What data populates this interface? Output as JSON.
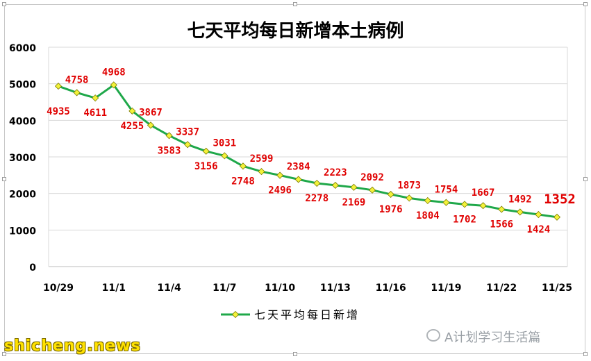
{
  "chart_data": {
    "type": "line",
    "title": "七天平均每日新增本土病例",
    "legend": {
      "label": "七天平均每日新增",
      "placement": "bottom"
    },
    "x_tick_labels": [
      "10/29",
      "11/1",
      "11/4",
      "11/7",
      "11/10",
      "11/13",
      "11/16",
      "11/19",
      "11/22",
      "11/25"
    ],
    "x": [
      "10/29",
      "10/30",
      "10/31",
      "11/1",
      "11/2",
      "11/3",
      "11/4",
      "11/5",
      "11/6",
      "11/7",
      "11/8",
      "11/9",
      "11/10",
      "11/11",
      "11/12",
      "11/13",
      "11/14",
      "11/15",
      "11/16",
      "11/17",
      "11/18",
      "11/19",
      "11/20",
      "11/21",
      "11/22",
      "11/23",
      "11/24",
      "11/25"
    ],
    "values": [
      4935,
      4758,
      4611,
      4968,
      4255,
      3867,
      3583,
      3337,
      3156,
      3031,
      2748,
      2599,
      2496,
      2384,
      2278,
      2223,
      2169,
      2092,
      1976,
      1873,
      1804,
      1754,
      1702,
      1667,
      1566,
      1492,
      1424,
      1352
    ],
    "y_ticks": [
      0,
      1000,
      2000,
      3000,
      4000,
      5000,
      6000
    ],
    "ylim": [
      0,
      6000
    ],
    "grid": true,
    "line_color": "#1fa84a",
    "marker_color": "#f2f23a",
    "label_color": "#e00000"
  },
  "watermark": "A计划学习生活篇",
  "brand": "shicheng.news"
}
